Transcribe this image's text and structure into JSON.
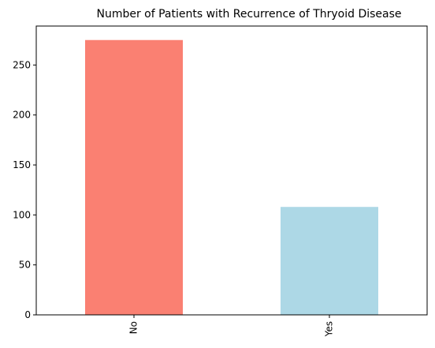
{
  "chart_data": {
    "type": "bar",
    "title": "Number of Patients with Recurrence of Thryoid Disease",
    "categories": [
      "No",
      "Yes"
    ],
    "values": [
      275,
      108
    ],
    "colors": [
      "#fa8072",
      "#add8e6"
    ],
    "ylim": [
      0,
      289
    ],
    "yticks": [
      0,
      50,
      100,
      150,
      200,
      250
    ],
    "xlabel": "",
    "ylabel": "",
    "grid": false,
    "legend": "none"
  }
}
